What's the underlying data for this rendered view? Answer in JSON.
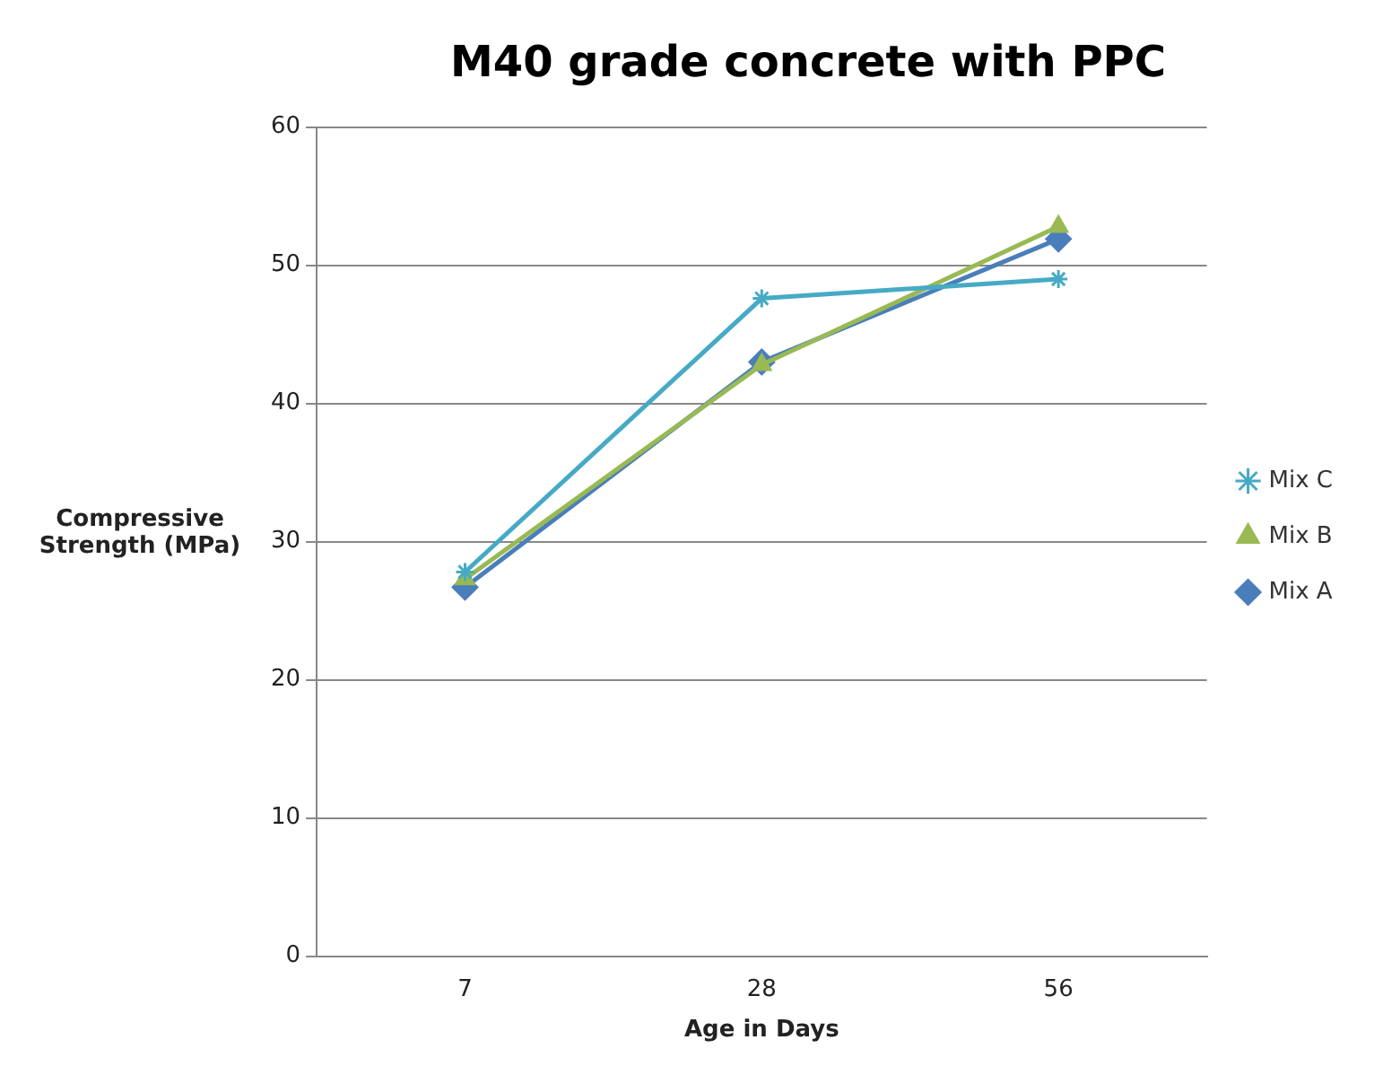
{
  "chart_data": {
    "type": "line",
    "title": "M40 grade concrete with PPC",
    "xlabel": "Age in Days",
    "ylabel": "Compressive Strength (MPa)",
    "categories": [
      "7",
      "28",
      "56"
    ],
    "series": [
      {
        "name": "Mix A",
        "color": "#4a7ebb",
        "marker": "diamond",
        "values": [
          26.7,
          43.0,
          51.9
        ]
      },
      {
        "name": "Mix B",
        "color": "#98b954",
        "marker": "triangle",
        "values": [
          27.3,
          42.8,
          52.8
        ]
      },
      {
        "name": "Mix C",
        "color": "#46aac5",
        "marker": "cross",
        "values": [
          27.8,
          47.6,
          49.0
        ]
      }
    ],
    "ylim": [
      0,
      60
    ],
    "yticks": [
      0,
      10,
      20,
      30,
      40,
      50,
      60
    ],
    "grid": "y",
    "legend": "right"
  }
}
